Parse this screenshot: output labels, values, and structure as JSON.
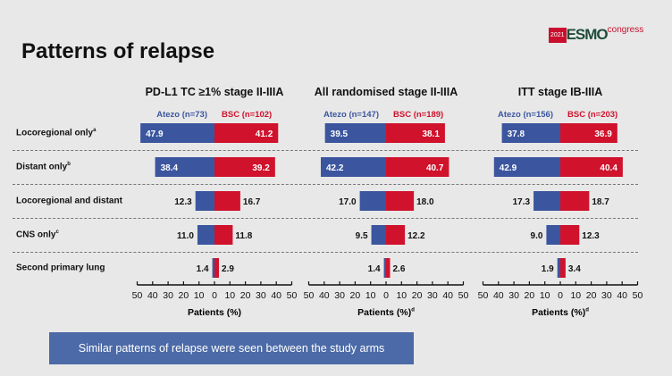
{
  "title": "Patterns of relapse",
  "logo": {
    "year": "2021",
    "name": "ESMO",
    "suffix": "congress"
  },
  "rows": [
    {
      "label": "Locoregional only",
      "sup": "a"
    },
    {
      "label": "Distant only",
      "sup": "b"
    },
    {
      "label": "Locoregional and distant",
      "sup": ""
    },
    {
      "label": "CNS only",
      "sup": "c"
    },
    {
      "label": "Second primary lung",
      "sup": ""
    }
  ],
  "colors": {
    "atezo": "#3b569e",
    "bsc": "#d0122c"
  },
  "chart_data": [
    {
      "type": "bar",
      "title": "PD-L1 TC ≥1% stage II-IIIA",
      "left_series": "Atezo (n=73)",
      "right_series": "BSC (n=102)",
      "xlabel": "Patients (%)",
      "xlabel_sup": "",
      "ticks": [
        "50",
        "40",
        "30",
        "20",
        "10",
        "0",
        "10",
        "20",
        "30",
        "40",
        "50"
      ],
      "xlim": [
        -50,
        50
      ],
      "categories": [
        "Locoregional only",
        "Distant only",
        "Locoregional and distant",
        "CNS only",
        "Second primary lung"
      ],
      "atezo": [
        47.9,
        38.4,
        12.3,
        11.0,
        1.4
      ],
      "bsc": [
        41.2,
        39.2,
        16.7,
        11.8,
        2.9
      ],
      "atezo_labels": [
        "47.9",
        "38.4",
        "12.3",
        "11.0",
        "1.4"
      ],
      "bsc_labels": [
        "41.2",
        "39.2",
        "16.7",
        "11.8",
        "2.9"
      ]
    },
    {
      "type": "bar",
      "title": "All randomised stage II-IIIA",
      "left_series": "Atezo (n=147)",
      "right_series": "BSC (n=189)",
      "xlabel": "Patients (%)",
      "xlabel_sup": "d",
      "ticks": [
        "50",
        "40",
        "30",
        "20",
        "10",
        "0",
        "10",
        "20",
        "30",
        "40",
        "50"
      ],
      "xlim": [
        -50,
        50
      ],
      "categories": [
        "Locoregional only",
        "Distant only",
        "Locoregional and distant",
        "CNS only",
        "Second primary lung"
      ],
      "atezo": [
        39.5,
        42.2,
        17.0,
        9.5,
        1.4
      ],
      "bsc": [
        38.1,
        40.7,
        18.0,
        12.2,
        2.6
      ],
      "atezo_labels": [
        "39.5",
        "42.2",
        "17.0",
        "9.5",
        "1.4"
      ],
      "bsc_labels": [
        "38.1",
        "40.7",
        "18.0",
        "12.2",
        "2.6"
      ]
    },
    {
      "type": "bar",
      "title": "ITT stage IB-IIIA",
      "left_series": "Atezo (n=156)",
      "right_series": "BSC (n=203)",
      "xlabel": "Patients (%)",
      "xlabel_sup": "d",
      "ticks": [
        "50",
        "40",
        "30",
        "20",
        "10",
        "0",
        "10",
        "20",
        "30",
        "40",
        "50"
      ],
      "xlim": [
        -50,
        50
      ],
      "categories": [
        "Locoregional only",
        "Distant only",
        "Locoregional and distant",
        "CNS only",
        "Second primary lung"
      ],
      "atezo": [
        37.8,
        42.9,
        17.3,
        9.0,
        1.9
      ],
      "bsc": [
        36.9,
        40.4,
        18.7,
        12.3,
        3.4
      ],
      "atezo_labels": [
        "37.8",
        "42.9",
        "17.3",
        "9.0",
        "1.9"
      ],
      "bsc_labels": [
        "36.9",
        "40.4",
        "18.7",
        "12.3",
        "3.4"
      ]
    }
  ],
  "footer": "Similar patterns of relapse were seen between the study arms"
}
